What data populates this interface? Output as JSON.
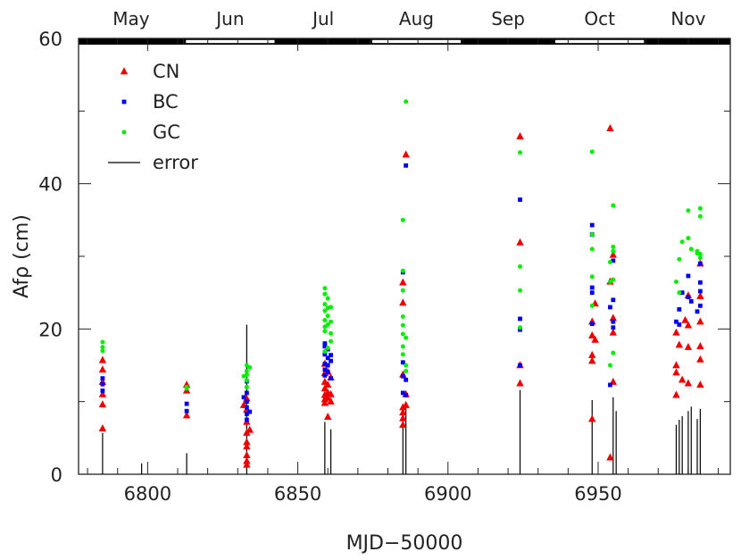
{
  "chart_data": {
    "type": "scatter",
    "title": "",
    "xlabel": "MJD−50000",
    "ylabel": "Afρ (cm)",
    "xlim": [
      6777,
      6994
    ],
    "ylim": [
      0,
      60
    ],
    "xticks": [
      6800,
      6850,
      6900,
      6950
    ],
    "yticks": [
      0,
      20,
      40,
      60
    ],
    "xtick_labels": [
      "6800",
      "6850",
      "6900",
      "6950"
    ],
    "ytick_labels": [
      "0",
      "20",
      "40",
      "60"
    ],
    "grid": false,
    "legend": {
      "position": "top-left"
    },
    "months": [
      {
        "label": "May",
        "start": 6777,
        "end": 6812
      },
      {
        "label": "Jun",
        "start": 6812,
        "end": 6843
      },
      {
        "label": "Jul",
        "start": 6843,
        "end": 6874
      },
      {
        "label": "Aug",
        "start": 6874,
        "end": 6905
      },
      {
        "label": "Sep",
        "start": 6905,
        "end": 6935
      },
      {
        "label": "Oct",
        "start": 6935,
        "end": 6966
      },
      {
        "label": "Nov",
        "start": 6966,
        "end": 6994
      }
    ],
    "series": [
      {
        "name": "CN",
        "marker": "triangle",
        "color": "#ee0000",
        "points": [
          [
            6785,
            15.7
          ],
          [
            6785,
            14.4
          ],
          [
            6785,
            12.7
          ],
          [
            6785,
            11.0
          ],
          [
            6785,
            9.6
          ],
          [
            6785,
            6.3
          ],
          [
            6813,
            12.3
          ],
          [
            6813,
            11.5
          ],
          [
            6813,
            8.1
          ],
          [
            6833,
            10.4
          ],
          [
            6833,
            8.9
          ],
          [
            6833,
            7.2
          ],
          [
            6833,
            5.7
          ],
          [
            6833,
            4.4
          ],
          [
            6833,
            3.8
          ],
          [
            6833,
            2.6
          ],
          [
            6833,
            1.8
          ],
          [
            6833,
            1.3
          ],
          [
            6832,
            9.5
          ],
          [
            6834,
            6.1
          ],
          [
            6859,
            15.2
          ],
          [
            6859,
            13.9
          ],
          [
            6859,
            12.7
          ],
          [
            6859,
            11.8
          ],
          [
            6859,
            10.9
          ],
          [
            6859,
            10.3
          ],
          [
            6859,
            9.8
          ],
          [
            6860,
            14.1
          ],
          [
            6860,
            12.3
          ],
          [
            6860,
            11.2
          ],
          [
            6860,
            10.5
          ],
          [
            6861,
            13.3
          ],
          [
            6861,
            11.0
          ],
          [
            6861,
            10.0
          ],
          [
            6860,
            7.9
          ],
          [
            6885,
            26.4
          ],
          [
            6885,
            23.6
          ],
          [
            6885,
            13.7
          ],
          [
            6885,
            9.2
          ],
          [
            6885,
            8.5
          ],
          [
            6885,
            7.7
          ],
          [
            6885,
            6.8
          ],
          [
            6886,
            44.0
          ],
          [
            6886,
            11.0
          ],
          [
            6886,
            9.5
          ],
          [
            6924,
            46.5
          ],
          [
            6924,
            31.9
          ],
          [
            6924,
            15.0
          ],
          [
            6924,
            12.5
          ],
          [
            6948,
            21.0
          ],
          [
            6948,
            19.1
          ],
          [
            6948,
            16.4
          ],
          [
            6948,
            15.6
          ],
          [
            6948,
            7.6
          ],
          [
            6949,
            18.5
          ],
          [
            6949,
            23.5
          ],
          [
            6954,
            47.6
          ],
          [
            6954,
            26.5
          ],
          [
            6954,
            2.3
          ],
          [
            6955,
            30.2
          ],
          [
            6955,
            21.5
          ],
          [
            6955,
            19.5
          ],
          [
            6955,
            12.7
          ],
          [
            6976,
            19.5
          ],
          [
            6976,
            15.0
          ],
          [
            6976,
            14.0
          ],
          [
            6976,
            10.9
          ],
          [
            6977,
            17.8
          ],
          [
            6978,
            13.0
          ],
          [
            6979,
            21.2
          ],
          [
            6980,
            24.6
          ],
          [
            6980,
            20.5
          ],
          [
            6980,
            17.5
          ],
          [
            6980,
            12.5
          ],
          [
            6984,
            29.0
          ],
          [
            6984,
            24.5
          ],
          [
            6984,
            21.0
          ],
          [
            6984,
            17.6
          ],
          [
            6984,
            15.8
          ],
          [
            6984,
            12.3
          ]
        ]
      },
      {
        "name": "BC",
        "marker": "square",
        "color": "#0000ee",
        "points": [
          [
            6785,
            13.2
          ],
          [
            6785,
            12.4
          ],
          [
            6785,
            11.5
          ],
          [
            6813,
            9.7
          ],
          [
            6813,
            8.7
          ],
          [
            6833,
            12.8
          ],
          [
            6833,
            11.2
          ],
          [
            6833,
            10.0
          ],
          [
            6833,
            9.2
          ],
          [
            6833,
            8.3
          ],
          [
            6833,
            7.5
          ],
          [
            6832,
            10.6
          ],
          [
            6834,
            8.6
          ],
          [
            6859,
            18.0
          ],
          [
            6859,
            16.5
          ],
          [
            6859,
            15.2
          ],
          [
            6859,
            14.4
          ],
          [
            6859,
            13.6
          ],
          [
            6860,
            17.2
          ],
          [
            6860,
            16.0
          ],
          [
            6860,
            15.0
          ],
          [
            6860,
            14.1
          ],
          [
            6861,
            16.4
          ],
          [
            6861,
            15.6
          ],
          [
            6861,
            13.2
          ],
          [
            6859,
            17.6
          ],
          [
            6885,
            27.8
          ],
          [
            6885,
            15.4
          ],
          [
            6885,
            13.5
          ],
          [
            6885,
            11.2
          ],
          [
            6886,
            42.5
          ],
          [
            6886,
            13.0
          ],
          [
            6886,
            10.9
          ],
          [
            6924,
            37.8
          ],
          [
            6924,
            21.4
          ],
          [
            6924,
            19.9
          ],
          [
            6924,
            15.0
          ],
          [
            6948,
            34.3
          ],
          [
            6948,
            33.0
          ],
          [
            6948,
            25.7
          ],
          [
            6948,
            25.0
          ],
          [
            6948,
            20.7
          ],
          [
            6954,
            23.0
          ],
          [
            6954,
            12.3
          ],
          [
            6955,
            29.4
          ],
          [
            6955,
            24.0
          ],
          [
            6955,
            21.0
          ],
          [
            6955,
            20.2
          ],
          [
            6976,
            21.0
          ],
          [
            6977,
            22.7
          ],
          [
            6977,
            20.6
          ],
          [
            6978,
            25.0
          ],
          [
            6980,
            27.3
          ],
          [
            6980,
            24.4
          ],
          [
            6981,
            23.8
          ],
          [
            6984,
            29.0
          ],
          [
            6984,
            26.4
          ],
          [
            6984,
            25.2
          ],
          [
            6984,
            23.2
          ],
          [
            6983,
            22.4
          ]
        ]
      },
      {
        "name": "GC",
        "marker": "circle",
        "color": "#00ee00",
        "points": [
          [
            6785,
            18.2
          ],
          [
            6785,
            17.5
          ],
          [
            6785,
            17.0
          ],
          [
            6813,
            12.0
          ],
          [
            6813,
            11.8
          ],
          [
            6833,
            15.0
          ],
          [
            6833,
            14.2
          ],
          [
            6833,
            13.7
          ],
          [
            6833,
            12.9
          ],
          [
            6833,
            12.0
          ],
          [
            6834,
            14.7
          ],
          [
            6832,
            13.5
          ],
          [
            6859,
            25.6
          ],
          [
            6859,
            24.8
          ],
          [
            6859,
            23.4
          ],
          [
            6859,
            22.5
          ],
          [
            6859,
            21.2
          ],
          [
            6859,
            20.3
          ],
          [
            6859,
            19.7
          ],
          [
            6860,
            24.2
          ],
          [
            6860,
            22.9
          ],
          [
            6860,
            21.8
          ],
          [
            6860,
            20.6
          ],
          [
            6861,
            23.0
          ],
          [
            6861,
            21.0
          ],
          [
            6861,
            19.4
          ],
          [
            6861,
            18.3
          ],
          [
            6860,
            17.4
          ],
          [
            6859,
            16.9
          ],
          [
            6885,
            35.0
          ],
          [
            6885,
            28.0
          ],
          [
            6885,
            25.3
          ],
          [
            6885,
            21.7
          ],
          [
            6885,
            20.5
          ],
          [
            6885,
            19.3
          ],
          [
            6885,
            17.6
          ],
          [
            6885,
            16.5
          ],
          [
            6886,
            51.3
          ],
          [
            6886,
            18.8
          ],
          [
            6886,
            15.0
          ],
          [
            6886,
            14.2
          ],
          [
            6924,
            44.3
          ],
          [
            6924,
            28.6
          ],
          [
            6924,
            25.3
          ],
          [
            6924,
            20.2
          ],
          [
            6948,
            44.4
          ],
          [
            6948,
            33.0
          ],
          [
            6948,
            31.0
          ],
          [
            6948,
            27.2
          ],
          [
            6948,
            23.2
          ],
          [
            6954,
            29.2
          ],
          [
            6954,
            26.5
          ],
          [
            6954,
            15.0
          ],
          [
            6955,
            37.0
          ],
          [
            6955,
            31.3
          ],
          [
            6955,
            30.7
          ],
          [
            6955,
            26.8
          ],
          [
            6955,
            16.7
          ],
          [
            6976,
            26.5
          ],
          [
            6977,
            29.6
          ],
          [
            6977,
            25.0
          ],
          [
            6978,
            32.0
          ],
          [
            6980,
            36.3
          ],
          [
            6980,
            32.5
          ],
          [
            6981,
            31.0
          ],
          [
            6983,
            30.7
          ],
          [
            6983,
            30.4
          ],
          [
            6984,
            36.6
          ],
          [
            6984,
            35.5
          ],
          [
            6984,
            30.3
          ],
          [
            6984,
            29.8
          ]
        ]
      },
      {
        "name": "error",
        "marker": "bar",
        "color": "#000000",
        "points": [
          [
            6785,
            5.7
          ],
          [
            6798,
            1.5
          ],
          [
            6813,
            2.9
          ],
          [
            6833,
            20.6
          ],
          [
            6859,
            7.2
          ],
          [
            6861,
            6.2
          ],
          [
            6885,
            8.8
          ],
          [
            6886,
            9.5
          ],
          [
            6924,
            11.6
          ],
          [
            6948,
            10.2
          ],
          [
            6955,
            10.6
          ],
          [
            6956,
            8.7
          ],
          [
            6976,
            6.8
          ],
          [
            6977,
            7.5
          ],
          [
            6978,
            8.0
          ],
          [
            6980,
            8.7
          ],
          [
            6981,
            9.3
          ],
          [
            6983,
            7.6
          ],
          [
            6984,
            9.0
          ]
        ]
      }
    ]
  }
}
